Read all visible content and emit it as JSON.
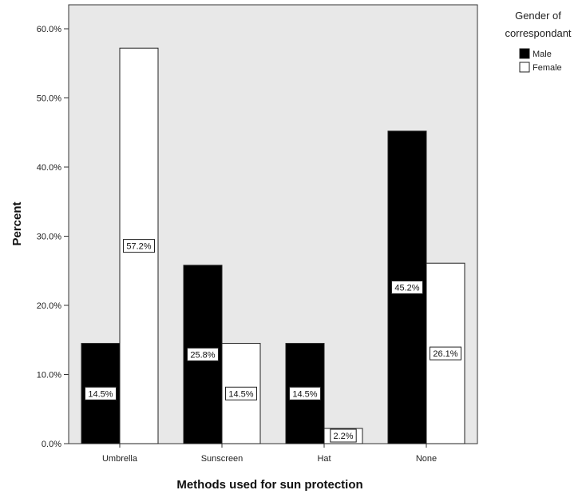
{
  "chart_data": {
    "type": "bar",
    "title": "",
    "xlabel": "Methods used for sun protection",
    "ylabel": "Percent",
    "categories": [
      "Umbrella",
      "Sunscreen",
      "Hat",
      "None"
    ],
    "series": [
      {
        "name": "Male",
        "color": "#000000",
        "values": [
          14.5,
          25.8,
          14.5,
          45.2
        ],
        "labels": [
          "14.5%",
          "25.8%",
          "14.5%",
          "45.2%"
        ]
      },
      {
        "name": "Female",
        "color": "#ffffff",
        "values": [
          57.2,
          14.5,
          2.2,
          26.1
        ],
        "labels": [
          "57.2%",
          "14.5%",
          "2.2%",
          "26.1%"
        ]
      }
    ],
    "ylim": [
      0,
      60
    ],
    "yticks": [
      0,
      10,
      20,
      30,
      40,
      50,
      60
    ],
    "ytick_labels": [
      "0.0%",
      "10.0%",
      "20.0%",
      "30.0%",
      "40.0%",
      "50.0%",
      "60.0%"
    ],
    "grid": false,
    "plot_background": "#e8e8e8",
    "legend": {
      "title_line1": "Gender of",
      "title_line2": "correspondant",
      "position": "top-right, outside plot"
    }
  }
}
